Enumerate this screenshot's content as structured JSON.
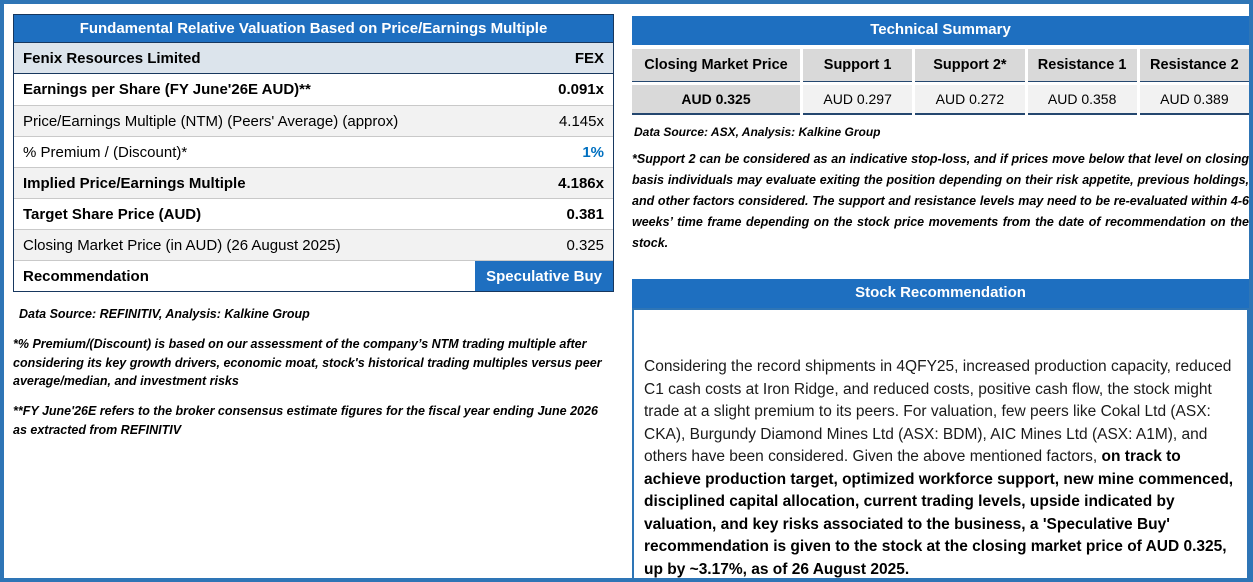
{
  "valuation": {
    "title": "Fundamental Relative Valuation Based on Price/Earnings Multiple",
    "rows": [
      {
        "label": "Fenix Resources Limited",
        "value": "FEX"
      },
      {
        "label": "Earnings per Share (FY June'26E AUD)**",
        "value": "0.091x"
      },
      {
        "label": "Price/Earnings Multiple (NTM)  (Peers' Average) (approx)",
        "value": "4.145x"
      },
      {
        "label": "% Premium / (Discount)*",
        "value": "1%"
      },
      {
        "label": "Implied Price/Earnings Multiple",
        "value": "4.186x"
      },
      {
        "label": "Target Share Price (AUD)",
        "value": "0.381"
      },
      {
        "label": "Closing Market Price (in AUD) (26 August 2025)",
        "value": "0.325"
      },
      {
        "label": "Recommendation",
        "value": "Speculative Buy"
      }
    ],
    "source": "Data Source: REFINITIV, Analysis: Kalkine Group",
    "note_premium": "*% Premium/(Discount) is based on our assessment of the company’s NTM trading multiple after considering its key growth drivers, economic moat, stock's historical trading multiples versus peer average/median, and investment risks",
    "note_fy": "**FY June'26E refers to the broker consensus estimate figures for the fiscal year ending June 2026  as extracted from REFINITIV"
  },
  "technical": {
    "title": "Technical Summary",
    "columns": [
      "Closing Market Price",
      "Support 1",
      "Support 2*",
      "Resistance 1",
      "Resistance 2"
    ],
    "values": [
      "AUD 0.325",
      "AUD 0.297",
      "AUD 0.272",
      "AUD 0.358",
      "AUD 0.389"
    ],
    "source": "Data Source: ASX, Analysis: Kalkine Group",
    "note": "*Support 2 can be considered as an indicative stop-loss, and if prices move below that level on closing basis individuals may evaluate exiting the position depending on their risk appetite, previous holdings, and other factors considered. The support and resistance levels may need to be re-evaluated within 4-6 weeks’ time frame depending on the stock price movements from the date of recommendation on the stock."
  },
  "recommendation": {
    "title": "Stock Recommendation",
    "body_normal": "Considering the record shipments in 4QFY25, increased production capacity, reduced C1 cash costs at Iron Ridge, and reduced costs, positive cash flow, the stock might trade at a slight premium to its peers. For valuation, few peers like Cokal Ltd (ASX: CKA), Burgundy Diamond Mines Ltd (ASX: BDM), AIC Mines Ltd (ASX: A1M), and others have been considered. Given the above mentioned factors, ",
    "body_bold": "on track to achieve production target, optimized workforce support, new mine commenced, disciplined capital allocation, current trading levels, upside indicated by valuation, and key risks associated to the business, a 'Speculative Buy' recommendation is given to the stock at the closing market price of AUD 0.325, up by ~3.17%, as of 26 August 2025."
  },
  "colors": {
    "header_blue": "#1E6FC0",
    "outer_border_blue": "#2E75B6",
    "highlight_value_blue": "#0070C0",
    "shaded_row_gray": "#F2F2F2",
    "company_row_blue_gray": "#DCE4EC",
    "table_header_gray": "#D9D9D9"
  }
}
